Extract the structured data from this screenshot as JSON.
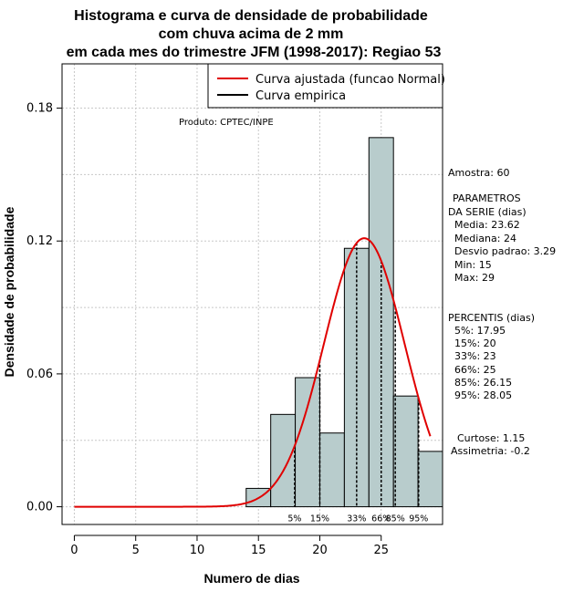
{
  "chart_data": {
    "type": "bar",
    "title": [
      "Histograma e curva de densidade de probabilidade",
      "com chuva acima de 2 mm",
      "em cada mes do trimestre JFM (1998-2017): Regiao 53"
    ],
    "xlabel": "Numero de dias",
    "ylabel": "Densidade de probabilidade",
    "xlim": [
      -1,
      30
    ],
    "ylim": [
      -0.008,
      0.2
    ],
    "x_ticks": [
      0,
      5,
      10,
      15,
      20,
      25
    ],
    "y_ticks": [
      0.0,
      0.06,
      0.12,
      0.18
    ],
    "y_tick_labels": [
      "0.00",
      "0.06",
      "0.12",
      "0.18"
    ],
    "bins": [
      {
        "start": 14,
        "end": 16,
        "density": 0.0083
      },
      {
        "start": 16,
        "end": 18,
        "density": 0.0417
      },
      {
        "start": 18,
        "end": 20,
        "density": 0.0583
      },
      {
        "start": 20,
        "end": 22,
        "density": 0.0333
      },
      {
        "start": 22,
        "end": 24,
        "density": 0.1167
      },
      {
        "start": 24,
        "end": 26,
        "density": 0.1667
      },
      {
        "start": 26,
        "end": 28,
        "density": 0.05
      },
      {
        "start": 28,
        "end": 30,
        "density": 0.025
      }
    ],
    "normal_fit": {
      "mean": 23.62,
      "sd": 3.29,
      "x_from": 0,
      "x_to": 29
    },
    "legend": {
      "position": "top-right",
      "entries": [
        {
          "label": "Curva ajustada (funcao Normal)",
          "color": "#e00000"
        },
        {
          "label": "Curva empirica",
          "color": "#000000"
        }
      ]
    },
    "product_label": "Produto: CPTEC/INPE",
    "percentile_markers": [
      {
        "x": 17.95,
        "label": "5%"
      },
      {
        "x": 20,
        "label": "15%"
      },
      {
        "x": 23,
        "label": "33%"
      },
      {
        "x": 25,
        "label": "66%"
      },
      {
        "x": 26.15,
        "label": "85%"
      },
      {
        "x": 28.05,
        "label": "95%"
      }
    ],
    "side_panel": {
      "amostra": "Amostra: 60",
      "param_header_1": "PARAMETROS",
      "param_header_2": "DA SERIE (dias)",
      "params": [
        "Media: 23.62",
        "Mediana: 24",
        "Desvio padrao: 3.29",
        "Min: 15",
        "Max: 29"
      ],
      "percentis_header": "PERCENTIS (dias)",
      "percentis": [
        "5%: 17.95",
        "15%: 20",
        "33%: 23",
        "66%: 25",
        "85%: 26.15",
        "95%: 28.05"
      ],
      "curtose": "Curtose: 1.15",
      "assimetria": "Assimetria: -0.2"
    },
    "colors": {
      "bar_fill": "#b8cccc",
      "bar_stroke": "#000000",
      "curve": "#e00000",
      "grid": "#c8c8c8"
    }
  }
}
